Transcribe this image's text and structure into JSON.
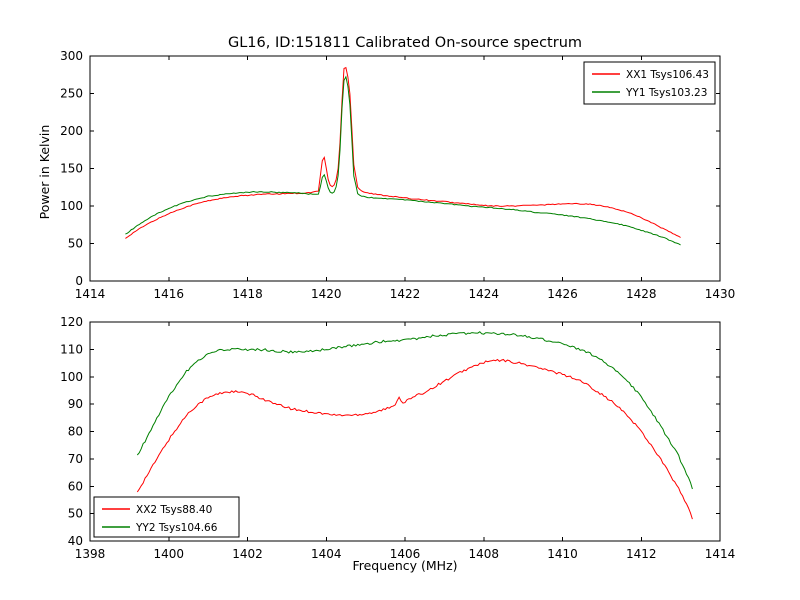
{
  "figure": {
    "bg": "#ffffff",
    "axis_color": "#000000"
  },
  "chart_data": [
    {
      "type": "line",
      "title": "GL16, ID:151811 Calibrated On-source spectrum",
      "xlabel": "",
      "ylabel": "Power in Kelvin",
      "xlim": [
        1414,
        1430
      ],
      "ylim": [
        0,
        300
      ],
      "xticks": [
        1414,
        1416,
        1418,
        1420,
        1422,
        1424,
        1426,
        1428,
        1430
      ],
      "yticks": [
        0,
        50,
        100,
        150,
        200,
        250,
        300
      ],
      "legend_position": "top-right",
      "grid": false,
      "noise": 1.2,
      "x": [
        1414.9,
        1415.2,
        1415.5,
        1415.8,
        1416.1,
        1416.4,
        1416.7,
        1417.0,
        1417.3,
        1417.6,
        1417.9,
        1418.2,
        1418.5,
        1418.8,
        1419.1,
        1419.4,
        1419.6,
        1419.8,
        1419.85,
        1419.9,
        1419.95,
        1420.0,
        1420.05,
        1420.1,
        1420.15,
        1420.2,
        1420.25,
        1420.3,
        1420.35,
        1420.4,
        1420.45,
        1420.5,
        1420.55,
        1420.6,
        1420.65,
        1420.7,
        1420.8,
        1420.9,
        1421.0,
        1421.2,
        1421.5,
        1421.8,
        1422.1,
        1422.4,
        1422.7,
        1423.0,
        1423.3,
        1423.6,
        1423.9,
        1424.2,
        1424.5,
        1424.8,
        1425.1,
        1425.4,
        1425.7,
        1426.0,
        1426.3,
        1426.6,
        1426.9,
        1427.2,
        1427.5,
        1427.8,
        1428.1,
        1428.4,
        1428.7,
        1429.0
      ],
      "series": [
        {
          "name": "XX1 Tsys106.43",
          "color": "#ff0000",
          "values": [
            57,
            68,
            77,
            85,
            92,
            98,
            103,
            107,
            110,
            112,
            114,
            115,
            116,
            116,
            117,
            117,
            118,
            120,
            140,
            160,
            165,
            150,
            135,
            128,
            126,
            128,
            135,
            150,
            185,
            240,
            283,
            285,
            272,
            250,
            205,
            155,
            125,
            120,
            118,
            116,
            114,
            112,
            110,
            109,
            107,
            106,
            104,
            103,
            101,
            100,
            100,
            100,
            101,
            101,
            102,
            103,
            103,
            103,
            101,
            98,
            94,
            89,
            82,
            74,
            66,
            58
          ]
        },
        {
          "name": "YY1 Tsys103.23",
          "color": "#008000",
          "values": [
            62,
            74,
            84,
            92,
            99,
            105,
            109,
            113,
            115,
            117,
            118,
            119,
            119,
            118,
            118,
            117,
            116,
            116,
            125,
            138,
            142,
            133,
            124,
            119,
            117,
            119,
            125,
            140,
            175,
            230,
            268,
            272,
            260,
            235,
            190,
            140,
            117,
            113,
            112,
            111,
            110,
            109,
            108,
            106,
            105,
            103,
            102,
            100,
            99,
            98,
            96,
            95,
            93,
            91,
            90,
            88,
            86,
            84,
            81,
            78,
            75,
            71,
            66,
            61,
            55,
            48
          ]
        }
      ]
    },
    {
      "type": "line",
      "title": "",
      "xlabel": "Frequency (MHz)",
      "ylabel": "",
      "xlim": [
        1398,
        1414
      ],
      "ylim": [
        40,
        120
      ],
      "xticks": [
        1398,
        1400,
        1402,
        1404,
        1406,
        1408,
        1410,
        1412,
        1414
      ],
      "yticks": [
        40,
        50,
        60,
        70,
        80,
        90,
        100,
        110,
        120
      ],
      "legend_position": "bottom-left",
      "grid": false,
      "noise": 0.9,
      "x": [
        1399.2,
        1399.45,
        1399.7,
        1399.95,
        1400.2,
        1400.45,
        1400.7,
        1400.95,
        1401.2,
        1401.45,
        1401.7,
        1401.95,
        1402.2,
        1402.45,
        1402.7,
        1402.95,
        1403.2,
        1403.45,
        1403.7,
        1403.95,
        1404.2,
        1404.45,
        1404.7,
        1404.95,
        1405.2,
        1405.45,
        1405.7,
        1405.85,
        1405.95,
        1406.2,
        1406.45,
        1406.7,
        1406.95,
        1407.2,
        1407.45,
        1407.7,
        1407.95,
        1408.2,
        1408.45,
        1408.7,
        1408.95,
        1409.2,
        1409.45,
        1409.7,
        1409.95,
        1410.2,
        1410.45,
        1410.7,
        1410.95,
        1411.2,
        1411.45,
        1411.7,
        1411.95,
        1412.2,
        1412.45,
        1412.7,
        1412.95,
        1413.2,
        1413.3
      ],
      "series": [
        {
          "name": "XX2 Tsys88.40",
          "color": "#ff0000",
          "values": [
            58,
            64,
            70,
            76,
            81,
            86,
            89.5,
            92,
            93.5,
            94.5,
            94.5,
            94,
            93,
            91.5,
            90,
            89,
            88,
            87.5,
            87,
            86.5,
            86,
            86,
            86,
            86.5,
            87,
            88,
            89,
            92.5,
            90.5,
            92.5,
            94,
            96,
            98,
            100,
            102,
            103.5,
            105,
            105.8,
            106,
            105.5,
            104.8,
            104,
            103,
            102,
            101,
            100,
            98.5,
            96.5,
            94,
            91.5,
            88.5,
            85,
            81,
            76,
            71,
            65,
            59,
            52,
            48
          ]
        },
        {
          "name": "YY2 Tsys104.66",
          "color": "#008000",
          "values": [
            71,
            78,
            85,
            91.5,
            97,
            102,
            105.5,
            108,
            109.5,
            110,
            110.2,
            110,
            110,
            109.8,
            109.5,
            109.2,
            109,
            109.2,
            109.5,
            110,
            110.5,
            111,
            111.5,
            112,
            112.5,
            113,
            113.2,
            113.3,
            113.5,
            113.8,
            114.2,
            114.8,
            115.2,
            115.6,
            115.8,
            116,
            116,
            116,
            115.8,
            115.5,
            115,
            114.5,
            113.8,
            113,
            112.2,
            111.2,
            110,
            108.5,
            106.5,
            104,
            101,
            97.5,
            93.5,
            88.5,
            83,
            77,
            71,
            63,
            59
          ]
        }
      ]
    }
  ]
}
